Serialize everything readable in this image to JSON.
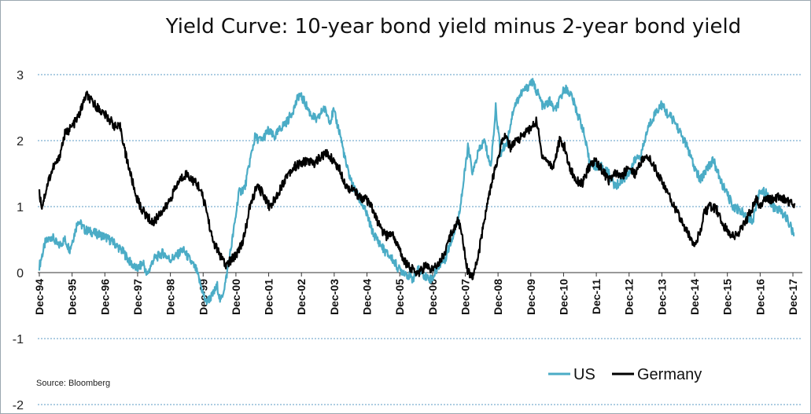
{
  "chart_data": {
    "type": "line",
    "title": "Yield Curve: 10-year bond yield minus 2-year bond yield",
    "source": "Source: Bloomberg",
    "ylim": [
      -2,
      3
    ],
    "y_ticks": [
      "3",
      "2",
      "1",
      "0",
      "-1",
      "-2"
    ],
    "grid": "horizontal dashed",
    "legend_position": "bottom-right",
    "x_tick_labels": [
      "Dec-94",
      "Dec-95",
      "Dec-96",
      "Dec-97",
      "Dec-98",
      "Dec-99",
      "Dec-00",
      "Dec-01",
      "Dec-02",
      "Dec-03",
      "Dec-04",
      "Dec-05",
      "Dec-06",
      "Dec-07",
      "Dec-08",
      "Dec-09",
      "Dec-10",
      "Dec-11",
      "Dec-12",
      "Dec-13",
      "Dec-14",
      "Dec-15",
      "Dec-16",
      "Dec-17"
    ],
    "series": [
      {
        "name": "US",
        "color": "#4bacc6",
        "points": [
          [
            1994.92,
            0.1
          ],
          [
            1995.1,
            0.45
          ],
          [
            1995.3,
            0.55
          ],
          [
            1995.5,
            0.4
          ],
          [
            1995.7,
            0.5
          ],
          [
            1995.85,
            0.35
          ],
          [
            1996.0,
            0.6
          ],
          [
            1996.1,
            0.8
          ],
          [
            1996.3,
            0.65
          ],
          [
            1996.6,
            0.6
          ],
          [
            1996.9,
            0.55
          ],
          [
            1997.2,
            0.45
          ],
          [
            1997.5,
            0.3
          ],
          [
            1997.7,
            0.15
          ],
          [
            1997.9,
            0.05
          ],
          [
            1998.1,
            0.15
          ],
          [
            1998.2,
            -0.05
          ],
          [
            1998.4,
            0.2
          ],
          [
            1998.7,
            0.3
          ],
          [
            1998.9,
            0.2
          ],
          [
            1999.1,
            0.25
          ],
          [
            1999.3,
            0.35
          ],
          [
            1999.5,
            0.2
          ],
          [
            1999.7,
            0.05
          ],
          [
            1999.85,
            -0.2
          ],
          [
            2000.0,
            -0.45
          ],
          [
            2000.2,
            -0.35
          ],
          [
            2000.35,
            -0.2
          ],
          [
            2000.45,
            -0.45
          ],
          [
            2000.6,
            -0.15
          ],
          [
            2000.75,
            0.3
          ],
          [
            2000.9,
            0.8
          ],
          [
            2001.0,
            1.2
          ],
          [
            2001.2,
            1.3
          ],
          [
            2001.35,
            1.7
          ],
          [
            2001.5,
            2.05
          ],
          [
            2001.7,
            2.0
          ],
          [
            2001.9,
            2.15
          ],
          [
            2002.1,
            2.05
          ],
          [
            2002.3,
            2.2
          ],
          [
            2002.5,
            2.3
          ],
          [
            2002.7,
            2.5
          ],
          [
            2002.85,
            2.7
          ],
          [
            2003.0,
            2.6
          ],
          [
            2003.2,
            2.4
          ],
          [
            2003.4,
            2.3
          ],
          [
            2003.6,
            2.5
          ],
          [
            2003.8,
            2.3
          ],
          [
            2003.9,
            2.45
          ],
          [
            2004.1,
            2.1
          ],
          [
            2004.3,
            1.6
          ],
          [
            2004.5,
            1.3
          ],
          [
            2004.7,
            1.1
          ],
          [
            2004.9,
            0.9
          ],
          [
            2005.1,
            0.6
          ],
          [
            2005.3,
            0.45
          ],
          [
            2005.5,
            0.3
          ],
          [
            2005.7,
            0.2
          ],
          [
            2005.9,
            0.05
          ],
          [
            2006.1,
            0.0
          ],
          [
            2006.3,
            -0.1
          ],
          [
            2006.5,
            0.05
          ],
          [
            2006.7,
            -0.05
          ],
          [
            2006.9,
            -0.1
          ],
          [
            2007.1,
            0.1
          ],
          [
            2007.3,
            0.2
          ],
          [
            2007.5,
            0.5
          ],
          [
            2007.7,
            0.8
          ],
          [
            2007.85,
            1.3
          ],
          [
            2008.0,
            1.9
          ],
          [
            2008.15,
            1.5
          ],
          [
            2008.3,
            1.8
          ],
          [
            2008.5,
            2.0
          ],
          [
            2008.7,
            1.6
          ],
          [
            2008.85,
            2.5
          ],
          [
            2009.0,
            1.8
          ],
          [
            2009.2,
            2.0
          ],
          [
            2009.4,
            2.5
          ],
          [
            2009.6,
            2.7
          ],
          [
            2009.8,
            2.8
          ],
          [
            2009.95,
            2.9
          ],
          [
            2010.15,
            2.7
          ],
          [
            2010.3,
            2.5
          ],
          [
            2010.5,
            2.6
          ],
          [
            2010.65,
            2.45
          ],
          [
            2010.8,
            2.6
          ],
          [
            2010.95,
            2.8
          ],
          [
            2011.15,
            2.7
          ],
          [
            2011.35,
            2.4
          ],
          [
            2011.5,
            2.2
          ],
          [
            2011.7,
            1.7
          ],
          [
            2011.9,
            1.6
          ],
          [
            2012.1,
            1.6
          ],
          [
            2012.3,
            1.5
          ],
          [
            2012.5,
            1.3
          ],
          [
            2012.7,
            1.4
          ],
          [
            2012.9,
            1.5
          ],
          [
            2013.1,
            1.7
          ],
          [
            2013.3,
            1.8
          ],
          [
            2013.5,
            2.2
          ],
          [
            2013.7,
            2.4
          ],
          [
            2013.9,
            2.55
          ],
          [
            2014.1,
            2.4
          ],
          [
            2014.3,
            2.3
          ],
          [
            2014.5,
            2.1
          ],
          [
            2014.7,
            1.9
          ],
          [
            2014.9,
            1.6
          ],
          [
            2015.1,
            1.4
          ],
          [
            2015.3,
            1.6
          ],
          [
            2015.5,
            1.7
          ],
          [
            2015.7,
            1.4
          ],
          [
            2015.9,
            1.2
          ],
          [
            2016.1,
            1.0
          ],
          [
            2016.3,
            0.95
          ],
          [
            2016.5,
            0.85
          ],
          [
            2016.7,
            0.8
          ],
          [
            2016.9,
            1.25
          ],
          [
            2017.1,
            1.2
          ],
          [
            2017.3,
            1.0
          ],
          [
            2017.5,
            0.95
          ],
          [
            2017.7,
            0.85
          ],
          [
            2017.85,
            0.7
          ],
          [
            2017.95,
            0.55
          ]
        ]
      },
      {
        "name": "Germany",
        "color": "#000000",
        "points": [
          [
            1994.92,
            1.2
          ],
          [
            1995.0,
            1.0
          ],
          [
            1995.2,
            1.4
          ],
          [
            1995.35,
            1.6
          ],
          [
            1995.5,
            1.7
          ],
          [
            1995.7,
            2.1
          ],
          [
            1995.9,
            2.2
          ],
          [
            1996.1,
            2.35
          ],
          [
            1996.25,
            2.55
          ],
          [
            1996.35,
            2.7
          ],
          [
            1996.5,
            2.6
          ],
          [
            1996.7,
            2.5
          ],
          [
            1996.9,
            2.4
          ],
          [
            1997.1,
            2.3
          ],
          [
            1997.25,
            2.2
          ],
          [
            1997.4,
            2.2
          ],
          [
            1997.55,
            1.8
          ],
          [
            1997.7,
            1.5
          ],
          [
            1997.85,
            1.2
          ],
          [
            1998.0,
            1.0
          ],
          [
            1998.2,
            0.85
          ],
          [
            1998.4,
            0.75
          ],
          [
            1998.6,
            0.9
          ],
          [
            1998.8,
            1.0
          ],
          [
            1999.0,
            1.2
          ],
          [
            1999.2,
            1.4
          ],
          [
            1999.4,
            1.5
          ],
          [
            1999.6,
            1.4
          ],
          [
            1999.8,
            1.3
          ],
          [
            2000.0,
            1.0
          ],
          [
            2000.2,
            0.5
          ],
          [
            2000.4,
            0.3
          ],
          [
            2000.6,
            0.1
          ],
          [
            2000.8,
            0.2
          ],
          [
            2000.95,
            0.3
          ],
          [
            2001.15,
            0.5
          ],
          [
            2001.35,
            1.0
          ],
          [
            2001.55,
            1.3
          ],
          [
            2001.75,
            1.2
          ],
          [
            2001.95,
            1.0
          ],
          [
            2002.1,
            1.1
          ],
          [
            2002.3,
            1.3
          ],
          [
            2002.5,
            1.5
          ],
          [
            2002.7,
            1.6
          ],
          [
            2002.9,
            1.65
          ],
          [
            2003.1,
            1.7
          ],
          [
            2003.3,
            1.65
          ],
          [
            2003.5,
            1.75
          ],
          [
            2003.7,
            1.8
          ],
          [
            2003.9,
            1.7
          ],
          [
            2004.1,
            1.55
          ],
          [
            2004.3,
            1.3
          ],
          [
            2004.5,
            1.25
          ],
          [
            2004.7,
            1.15
          ],
          [
            2004.9,
            1.1
          ],
          [
            2005.1,
            0.95
          ],
          [
            2005.3,
            0.7
          ],
          [
            2005.5,
            0.55
          ],
          [
            2005.7,
            0.6
          ],
          [
            2005.9,
            0.35
          ],
          [
            2006.1,
            0.15
          ],
          [
            2006.3,
            0.05
          ],
          [
            2006.5,
            0.0
          ],
          [
            2006.7,
            0.1
          ],
          [
            2006.9,
            0.05
          ],
          [
            2007.1,
            0.15
          ],
          [
            2007.3,
            0.3
          ],
          [
            2007.5,
            0.6
          ],
          [
            2007.7,
            0.8
          ],
          [
            2007.85,
            0.5
          ],
          [
            2008.0,
            0.0
          ],
          [
            2008.15,
            -0.05
          ],
          [
            2008.3,
            0.2
          ],
          [
            2008.5,
            0.8
          ],
          [
            2008.7,
            1.3
          ],
          [
            2008.9,
            1.7
          ],
          [
            2009.1,
            2.1
          ],
          [
            2009.3,
            1.9
          ],
          [
            2009.5,
            2.0
          ],
          [
            2009.7,
            2.1
          ],
          [
            2009.95,
            2.2
          ],
          [
            2010.1,
            2.3
          ],
          [
            2010.25,
            1.8
          ],
          [
            2010.4,
            1.7
          ],
          [
            2010.6,
            1.6
          ],
          [
            2010.8,
            2.0
          ],
          [
            2010.95,
            1.9
          ],
          [
            2011.1,
            1.6
          ],
          [
            2011.3,
            1.4
          ],
          [
            2011.5,
            1.35
          ],
          [
            2011.7,
            1.6
          ],
          [
            2011.9,
            1.7
          ],
          [
            2012.1,
            1.55
          ],
          [
            2012.3,
            1.4
          ],
          [
            2012.5,
            1.5
          ],
          [
            2012.7,
            1.45
          ],
          [
            2012.9,
            1.6
          ],
          [
            2013.1,
            1.5
          ],
          [
            2013.3,
            1.7
          ],
          [
            2013.5,
            1.75
          ],
          [
            2013.7,
            1.6
          ],
          [
            2013.9,
            1.4
          ],
          [
            2014.1,
            1.2
          ],
          [
            2014.3,
            1.0
          ],
          [
            2014.5,
            0.8
          ],
          [
            2014.7,
            0.6
          ],
          [
            2014.9,
            0.45
          ],
          [
            2015.1,
            0.6
          ],
          [
            2015.2,
            0.9
          ],
          [
            2015.4,
            1.0
          ],
          [
            2015.6,
            0.95
          ],
          [
            2015.8,
            0.7
          ],
          [
            2016.0,
            0.6
          ],
          [
            2016.2,
            0.55
          ],
          [
            2016.4,
            0.7
          ],
          [
            2016.6,
            0.9
          ],
          [
            2016.8,
            1.1
          ],
          [
            2016.95,
            1.0
          ],
          [
            2017.1,
            1.15
          ],
          [
            2017.3,
            1.1
          ],
          [
            2017.5,
            1.15
          ],
          [
            2017.7,
            1.1
          ],
          [
            2017.9,
            1.05
          ],
          [
            2017.98,
            1.05
          ]
        ]
      }
    ]
  }
}
